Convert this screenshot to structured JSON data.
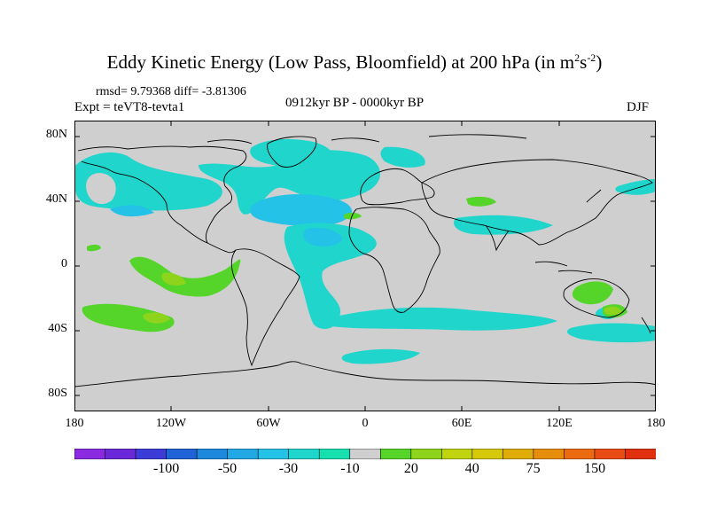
{
  "title": {
    "main": "Eddy Kinetic Energy (Low Pass, Bloomfield) at 200 hPa (in m",
    "sup1": "2",
    "mid": "s",
    "sup2": "-2",
    "end": ")"
  },
  "stats": "rmsd= 9.79368 diff= -3.81306",
  "experiment": "Expt = teVT8-tevta1",
  "period": "0912kyr BP - 0000kyr BP",
  "season": "DJF",
  "lat_labels": [
    "80N",
    "40N",
    "0",
    "40S",
    "80S"
  ],
  "lon_labels": [
    "180",
    "120W",
    "60W",
    "0",
    "60E",
    "120E",
    "180"
  ],
  "colorbar": {
    "colors": [
      "#8a2be2",
      "#6a28d8",
      "#3c3cd9",
      "#1f63d6",
      "#1e88dc",
      "#22a8e4",
      "#23c2e6",
      "#20d6cc",
      "#17e0b0",
      "#cfcfcf",
      "#55d42a",
      "#8fd41c",
      "#c0d410",
      "#d8c80a",
      "#e0ac0a",
      "#e88c0c",
      "#ec6a10",
      "#e84c14",
      "#e03010"
    ],
    "labels": [
      "-100",
      "-50",
      "-30",
      "-10",
      "20",
      "40",
      "75",
      "150"
    ],
    "label_fractions": [
      0.158,
      0.263,
      0.368,
      0.474,
      0.579,
      0.684,
      0.789,
      0.895
    ]
  },
  "map_colors": {
    "background": "#cfcfcf",
    "neg_weak": "#20d6cc",
    "neg_mid": "#23c2e6",
    "neg_strong": "#1e88dc",
    "pos_weak": "#55d42a",
    "pos_mid": "#8fd41c",
    "coast": "#000000"
  }
}
